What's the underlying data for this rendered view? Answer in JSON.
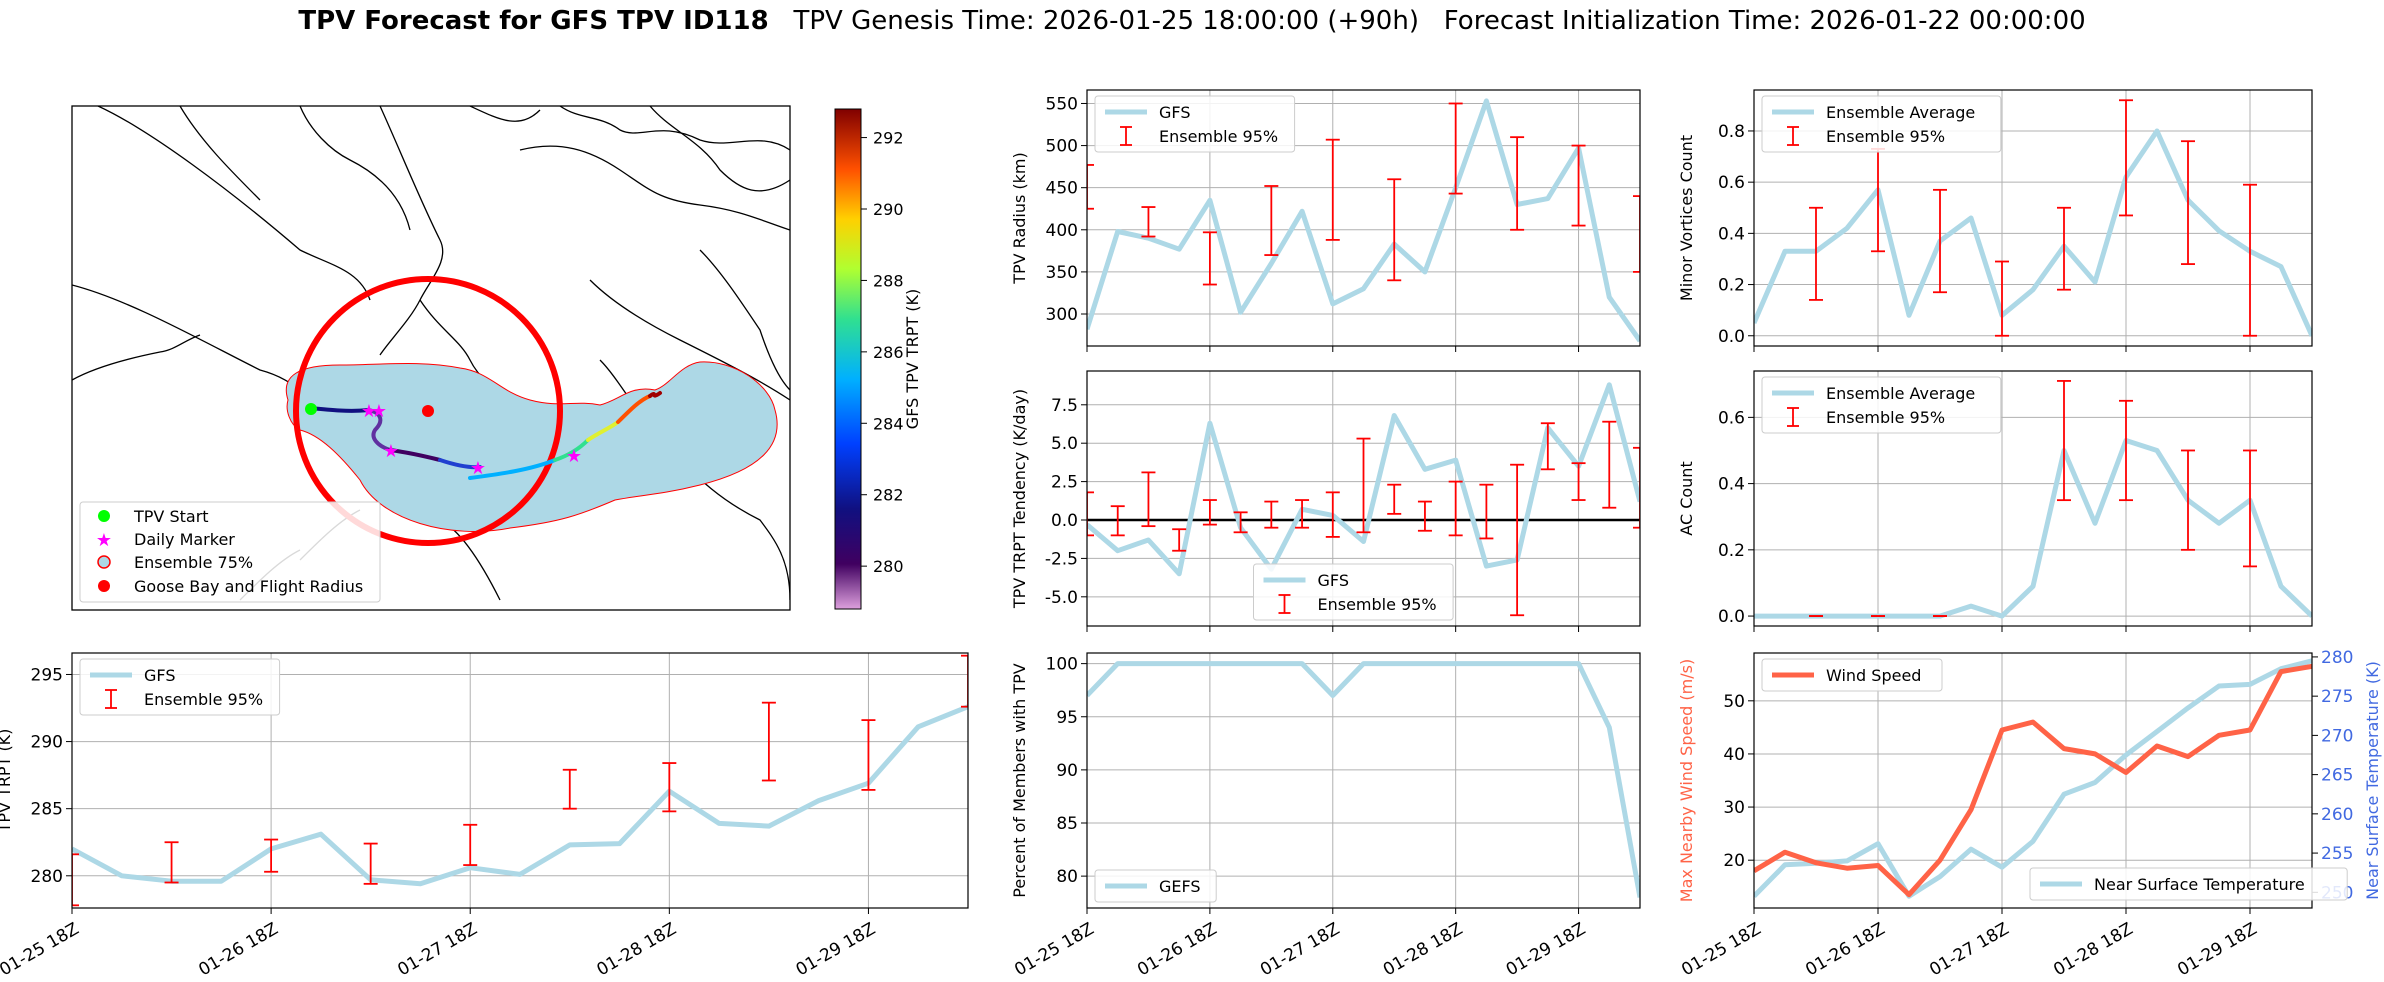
{
  "header": {
    "title_bold": "TPV Forecast for GFS TPV ID118",
    "genesis": "TPV Genesis Time: 2026-01-25 18:00:00 (+90h)",
    "init": "Forecast Initialization Time: 2026-01-22 00:00:00"
  },
  "colors": {
    "gfs": "#add8e6",
    "ens": "#ff0000",
    "wind": "#ff6347",
    "temp_axis": "#4169e1",
    "map_fill": "#add8e6",
    "radius": "#ff0000"
  },
  "map": {
    "colorbar_label": "GFS TPV TRPT (K)",
    "colorbar_ticks": [
      "280",
      "282",
      "284",
      "286",
      "288",
      "290",
      "292"
    ],
    "colorbar_range": [
      278.8,
      292.8
    ],
    "legend": [
      "TPV Start",
      "Daily Marker",
      "Ensemble 75%",
      "Goose Bay and Flight Radius"
    ]
  },
  "chart_data": [
    {
      "id": "radius",
      "type": "line",
      "ylabel": "TPV Radius (km)",
      "ylim": [
        262,
        566
      ],
      "yticks": [
        300,
        350,
        400,
        450,
        500,
        550
      ],
      "legend": [
        "GFS",
        "Ensemble 95%"
      ],
      "legend_loc": "top-left",
      "series": [
        {
          "name": "GFS",
          "values": [
            282,
            398,
            390,
            377,
            435,
            302,
            360,
            422,
            312,
            330,
            383,
            350,
            450,
            553,
            430,
            437,
            497,
            320,
            268
          ]
        }
      ],
      "errorbars": [
        [
          0,
          425,
          477
        ],
        [
          2,
          392,
          427
        ],
        [
          4,
          335,
          397
        ],
        [
          6,
          370,
          452
        ],
        [
          8,
          388,
          507
        ],
        [
          10,
          340,
          460
        ],
        [
          12,
          443,
          550
        ],
        [
          14,
          400,
          510
        ],
        [
          16,
          405,
          500
        ],
        [
          18,
          350,
          440
        ]
      ]
    },
    {
      "id": "minor",
      "type": "line",
      "ylabel": "Minor Vortices Count",
      "ylim": [
        -0.04,
        0.96
      ],
      "yticks": [
        0.0,
        0.2,
        0.4,
        0.6,
        0.8
      ],
      "yfmt": 1,
      "legend": [
        "Ensemble Average",
        "Ensemble 95%"
      ],
      "legend_loc": "top-left",
      "series": [
        {
          "name": "Ensemble Average",
          "values": [
            0.05,
            0.33,
            0.33,
            0.42,
            0.57,
            0.08,
            0.37,
            0.46,
            0.08,
            0.18,
            0.35,
            0.21,
            0.62,
            0.8,
            0.53,
            0.41,
            0.33,
            0.27,
            0.0
          ]
        }
      ],
      "errorbars": [
        [
          2,
          0.14,
          0.5
        ],
        [
          4,
          0.33,
          0.73
        ],
        [
          6,
          0.17,
          0.57
        ],
        [
          8,
          0.0,
          0.29
        ],
        [
          10,
          0.18,
          0.5
        ],
        [
          12,
          0.47,
          0.92
        ],
        [
          14,
          0.28,
          0.76
        ],
        [
          16,
          0.0,
          0.59
        ]
      ]
    },
    {
      "id": "tendency",
      "type": "line",
      "ylabel": "TPV TRPT Tendency (K/day)",
      "ylim": [
        -6.9,
        9.7
      ],
      "yticks": [
        -5.0,
        -2.5,
        0.0,
        2.5,
        5.0,
        7.5
      ],
      "yfmt": 1,
      "zero_line": true,
      "legend": [
        "GFS",
        "Ensemble 95%"
      ],
      "legend_loc": "bottom-center",
      "series": [
        {
          "name": "GFS",
          "values": [
            -0.3,
            -2.0,
            -1.3,
            -3.5,
            6.3,
            -0.5,
            -3.2,
            0.7,
            0.3,
            -1.4,
            6.8,
            3.3,
            3.9,
            -3.0,
            -2.6,
            6.0,
            3.5,
            8.8,
            1.2
          ]
        }
      ],
      "errorbars": [
        [
          0,
          -1.0,
          1.8
        ],
        [
          1,
          -1.0,
          0.9
        ],
        [
          2,
          -0.4,
          3.1
        ],
        [
          3,
          -2.0,
          -0.6
        ],
        [
          4,
          -0.3,
          1.3
        ],
        [
          5,
          -0.8,
          0.5
        ],
        [
          6,
          -0.5,
          1.2
        ],
        [
          7,
          -0.5,
          1.3
        ],
        [
          8,
          -1.1,
          1.8
        ],
        [
          9,
          -0.8,
          5.3
        ],
        [
          10,
          0.4,
          2.3
        ],
        [
          11,
          -0.7,
          1.2
        ],
        [
          12,
          -1.0,
          2.5
        ],
        [
          13,
          -1.2,
          2.3
        ],
        [
          14,
          -6.2,
          3.6
        ],
        [
          15,
          3.3,
          6.3
        ],
        [
          16,
          1.3,
          3.7
        ],
        [
          17,
          0.8,
          6.4
        ],
        [
          18,
          -0.5,
          4.7
        ]
      ]
    },
    {
      "id": "ac",
      "type": "line",
      "ylabel": "AC Count",
      "ylim": [
        -0.03,
        0.74
      ],
      "yticks": [
        0.0,
        0.2,
        0.4,
        0.6
      ],
      "yfmt": 1,
      "legend": [
        "Ensemble Average",
        "Ensemble 95%"
      ],
      "legend_loc": "top-left",
      "series": [
        {
          "name": "Ensemble Average",
          "values": [
            0,
            0,
            0,
            0,
            0,
            0,
            0,
            0.03,
            0,
            0.09,
            0.5,
            0.28,
            0.53,
            0.5,
            0.35,
            0.28,
            0.35,
            0.09,
            0.0
          ]
        }
      ],
      "errorbars": [
        [
          2,
          0,
          0
        ],
        [
          4,
          0,
          0
        ],
        [
          6,
          0,
          0
        ],
        [
          10,
          0.35,
          0.71
        ],
        [
          12,
          0.35,
          0.65
        ],
        [
          14,
          0.2,
          0.5
        ],
        [
          16,
          0.15,
          0.5
        ]
      ]
    },
    {
      "id": "trpt",
      "type": "line",
      "ylabel": "TPV TRPT (K)",
      "ylim": [
        277.6,
        296.6
      ],
      "yticks": [
        280,
        285,
        290,
        295
      ],
      "legend": [
        "GFS",
        "Ensemble 95%"
      ],
      "legend_loc": "top-left",
      "series": [
        {
          "name": "GFS",
          "values": [
            282.0,
            280.0,
            279.6,
            279.6,
            282.0,
            283.1,
            279.7,
            279.4,
            280.6,
            280.1,
            282.3,
            282.4,
            286.3,
            283.9,
            283.7,
            285.6,
            286.9,
            291.1,
            292.6
          ]
        }
      ],
      "errorbars": [
        [
          0,
          277.8,
          281.6
        ],
        [
          2,
          279.5,
          282.5
        ],
        [
          4,
          280.3,
          282.7
        ],
        [
          6,
          279.4,
          282.4
        ],
        [
          8,
          280.8,
          283.8
        ],
        [
          10,
          285.0,
          287.9
        ],
        [
          12,
          284.8,
          288.4
        ],
        [
          14,
          287.1,
          292.9
        ],
        [
          16,
          286.4,
          291.6
        ],
        [
          18,
          292.6,
          296.4
        ]
      ]
    },
    {
      "id": "percent",
      "type": "line",
      "ylabel": "Percent of Members with TPV",
      "ylim": [
        77,
        101
      ],
      "yticks": [
        80,
        85,
        90,
        95,
        100
      ],
      "legend": [
        "GEFS"
      ],
      "legend_loc": "bottom-left",
      "series": [
        {
          "name": "GEFS",
          "values": [
            97,
            100,
            100,
            100,
            100,
            100,
            100,
            100,
            97,
            100,
            100,
            100,
            100,
            100,
            100,
            100,
            100,
            94,
            78
          ]
        }
      ]
    },
    {
      "id": "wind_temp",
      "type": "line",
      "ylabel": "Max Nearby Wind Speed (m/s)",
      "ylim": [
        11,
        59
      ],
      "yticks": [
        20,
        30,
        40,
        50
      ],
      "ylabel_right": "Near Surface Temperature (K)",
      "ylim_right": [
        248,
        280.5
      ],
      "yticks_right": [
        250,
        255,
        260,
        265,
        270,
        275,
        280
      ],
      "legend": [
        "Wind Speed",
        "Near Surface Temperature"
      ],
      "series": [
        {
          "name": "Wind Speed",
          "axis": "left",
          "values": [
            18,
            21.5,
            19.5,
            18.5,
            19,
            13.5,
            20,
            29.5,
            44.5,
            46,
            41,
            40,
            36.5,
            41.5,
            39.5,
            43.5,
            44.5,
            55.5,
            56.5
          ]
        },
        {
          "name": "Near Surface Temperature",
          "axis": "right",
          "values": [
            249.5,
            253.5,
            253.7,
            254,
            256.2,
            249.5,
            252,
            255.5,
            253.2,
            256.5,
            262.5,
            264,
            267.5,
            270.5,
            273.5,
            276.3,
            276.5,
            278.5,
            279.5
          ]
        }
      ]
    }
  ],
  "time_axis": {
    "labels": [
      "01-25 18Z",
      "01-26 18Z",
      "01-27 18Z",
      "01-28 18Z",
      "01-29 18Z"
    ],
    "label_index": [
      0,
      4,
      8,
      12,
      16
    ]
  }
}
